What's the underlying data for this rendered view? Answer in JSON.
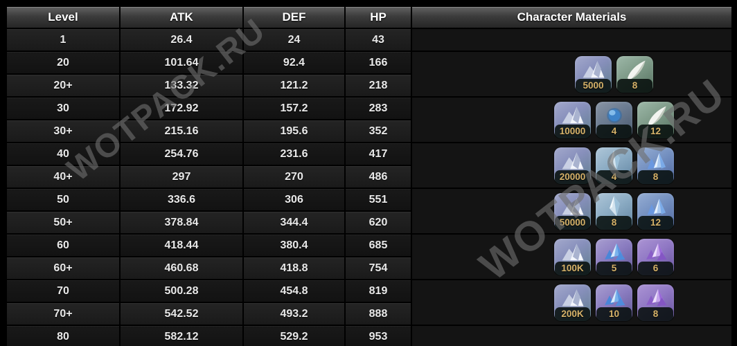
{
  "table": {
    "headers": {
      "level": "Level",
      "atk": "ATK",
      "def": "DEF",
      "hp": "HP",
      "materials": "Character Materials"
    },
    "rows": [
      {
        "level": "1",
        "atk": "26.4",
        "def": "24",
        "hp": "43",
        "materials": {
          "span": 1,
          "items": []
        }
      },
      {
        "level": "20",
        "atk": "101.64",
        "def": "92.4",
        "hp": "166",
        "materials": {
          "span": 2,
          "items": [
            {
              "icon": "mora-icon",
              "rarity": "mora",
              "count": "5000"
            },
            {
              "icon": "horn-icon",
              "rarity": "green",
              "count": "8"
            }
          ]
        }
      },
      {
        "level": "20+",
        "atk": "133.32",
        "def": "121.2",
        "hp": "218"
      },
      {
        "level": "30",
        "atk": "172.92",
        "def": "157.2",
        "hp": "283",
        "materials": {
          "span": 2,
          "items": [
            {
              "icon": "mora-icon",
              "rarity": "mora",
              "count": "10000"
            },
            {
              "icon": "orb-icon",
              "rarity": "grayblue",
              "count": "4"
            },
            {
              "icon": "horn-icon",
              "rarity": "green",
              "count": "12"
            }
          ]
        }
      },
      {
        "level": "30+",
        "atk": "215.16",
        "def": "195.6",
        "hp": "352"
      },
      {
        "level": "40",
        "atk": "254.76",
        "def": "231.6",
        "hp": "417",
        "materials": {
          "span": 2,
          "items": [
            {
              "icon": "mora-icon",
              "rarity": "mora",
              "count": "20000"
            },
            {
              "icon": "shard-icon",
              "rarity": "lightblue",
              "count": "4"
            },
            {
              "icon": "blue-gem-icon",
              "rarity": "blue",
              "count": "8"
            }
          ]
        }
      },
      {
        "level": "40+",
        "atk": "297",
        "def": "270",
        "hp": "486"
      },
      {
        "level": "50",
        "atk": "336.6",
        "def": "306",
        "hp": "551",
        "materials": {
          "span": 2,
          "items": [
            {
              "icon": "mora-icon",
              "rarity": "mora",
              "count": "50000"
            },
            {
              "icon": "shard-icon",
              "rarity": "lightblue",
              "count": "8"
            },
            {
              "icon": "blue-gem-icon",
              "rarity": "blue",
              "count": "12"
            }
          ]
        }
      },
      {
        "level": "50+",
        "atk": "378.84",
        "def": "344.4",
        "hp": "620"
      },
      {
        "level": "60",
        "atk": "418.44",
        "def": "380.4",
        "hp": "685",
        "materials": {
          "span": 2,
          "items": [
            {
              "icon": "mora-icon",
              "rarity": "mora",
              "count": "100K"
            },
            {
              "icon": "crystal-icon",
              "rarity": "purpleblue",
              "count": "5"
            },
            {
              "icon": "purple-gem-icon",
              "rarity": "purple",
              "count": "6"
            }
          ]
        }
      },
      {
        "level": "60+",
        "atk": "460.68",
        "def": "418.8",
        "hp": "754"
      },
      {
        "level": "70",
        "atk": "500.28",
        "def": "454.8",
        "hp": "819",
        "materials": {
          "span": 2,
          "items": [
            {
              "icon": "mora-icon",
              "rarity": "mora",
              "count": "200K"
            },
            {
              "icon": "crystal-icon",
              "rarity": "purpleblue",
              "count": "10"
            },
            {
              "icon": "purple-gem-icon",
              "rarity": "purple",
              "count": "8"
            }
          ]
        }
      },
      {
        "level": "70+",
        "atk": "542.52",
        "def": "493.2",
        "hp": "888"
      },
      {
        "level": "80",
        "atk": "582.12",
        "def": "529.2",
        "hp": "953",
        "materials": {
          "span": 1,
          "items": []
        }
      }
    ]
  },
  "watermarks": [
    {
      "text": "WOTPACK.RU"
    },
    {
      "text": "WOTPACK.RU"
    }
  ],
  "colors": {
    "count_gold": "#d6b269",
    "header_text": "#ffffff",
    "cell_text": "#e9e9e9",
    "watermark_gray": "#6e6e6e",
    "background": "#000000"
  }
}
